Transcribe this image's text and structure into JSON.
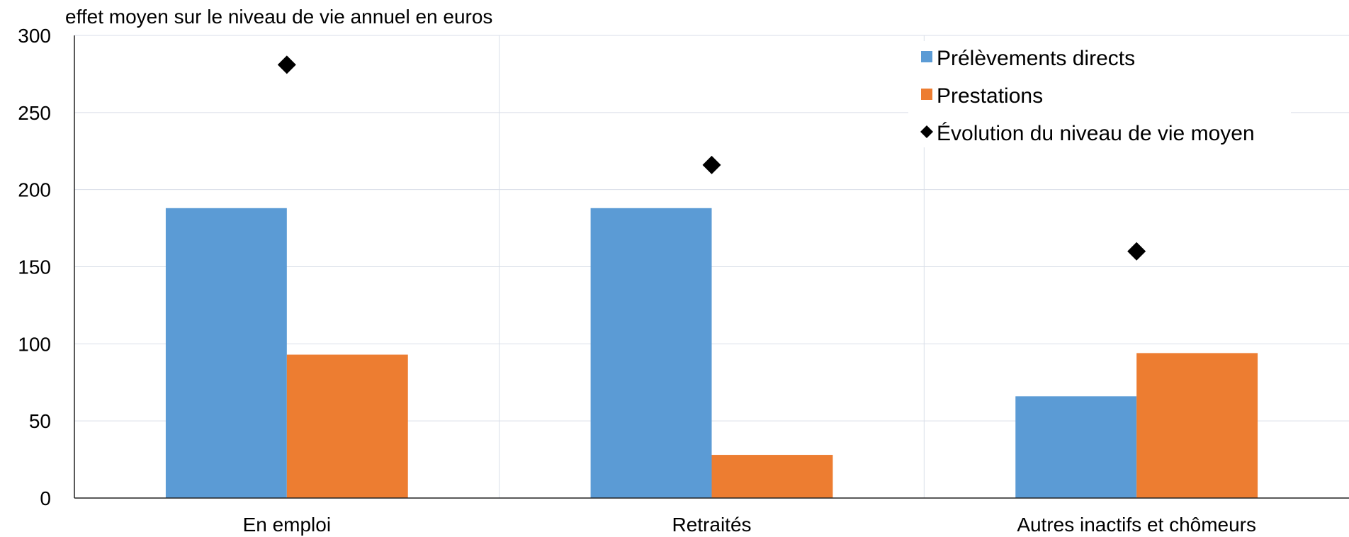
{
  "chart_data": {
    "type": "bar",
    "ylabel": "effet moyen sur le niveau de vie annuel en euros",
    "categories": [
      "En emploi",
      "Retraités",
      "Autres inactifs et chômeurs"
    ],
    "series": [
      {
        "name": "Prélèvements directs",
        "kind": "bar",
        "color": "#5b9bd5",
        "values": [
          188,
          188,
          66
        ]
      },
      {
        "name": "Prestations",
        "kind": "bar",
        "color": "#ed7d31",
        "values": [
          93,
          28,
          94
        ]
      },
      {
        "name": "Évolution du niveau de vie moyen",
        "kind": "marker",
        "marker": "diamond",
        "color": "#000000",
        "values": [
          281,
          216,
          160
        ]
      }
    ],
    "ylim": [
      0,
      300
    ],
    "yticks": [
      "0",
      "50",
      "100",
      "150",
      "200",
      "250",
      "300"
    ],
    "grid": true,
    "legend_position": "top-right"
  }
}
